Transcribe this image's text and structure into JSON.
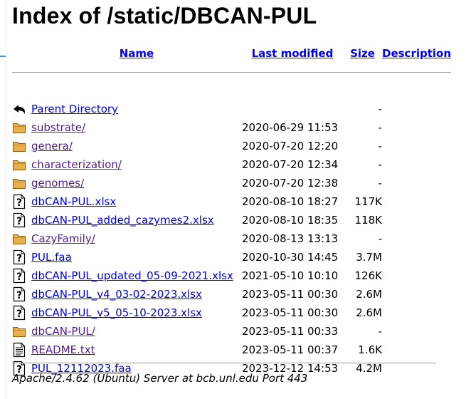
{
  "page": {
    "title": "Index of /static/DBCAN-PUL"
  },
  "columns": {
    "name": "Name",
    "last_modified": "Last modified",
    "size": "Size",
    "description": "Description"
  },
  "rows": [
    {
      "icon": "back-icon",
      "name": "Parent Directory",
      "modified": "",
      "size": "-",
      "visited": false
    },
    {
      "icon": "folder-icon",
      "name": "substrate/",
      "modified": "2020-06-29 11:53",
      "size": "-",
      "visited": true
    },
    {
      "icon": "folder-icon",
      "name": "genera/",
      "modified": "2020-07-20 12:20",
      "size": "-",
      "visited": true
    },
    {
      "icon": "folder-icon",
      "name": "characterization/",
      "modified": "2020-07-20 12:34",
      "size": "-",
      "visited": true
    },
    {
      "icon": "folder-icon",
      "name": "genomes/",
      "modified": "2020-07-20 12:38",
      "size": "-",
      "visited": true
    },
    {
      "icon": "unknown-file-icon",
      "name": "dbCAN-PUL.xlsx",
      "modified": "2020-08-10 18:27",
      "size": "117K",
      "visited": false
    },
    {
      "icon": "unknown-file-icon",
      "name": "dbCAN-PUL_added_cazymes2.xlsx",
      "modified": "2020-08-10 18:35",
      "size": "118K",
      "visited": false
    },
    {
      "icon": "folder-icon",
      "name": "CazyFamily/",
      "modified": "2020-08-13 13:13",
      "size": "-",
      "visited": true
    },
    {
      "icon": "unknown-file-icon",
      "name": "PUL.faa",
      "modified": "2020-10-30 14:45",
      "size": "3.7M",
      "visited": false
    },
    {
      "icon": "unknown-file-icon",
      "name": "dbCAN-PUL_updated_05-09-2021.xlsx",
      "modified": "2021-05-10 10:10",
      "size": "126K",
      "visited": false
    },
    {
      "icon": "unknown-file-icon",
      "name": "dbCAN-PUL_v4_03-02-2023.xlsx",
      "modified": "2023-05-11 00:30",
      "size": "2.6M",
      "visited": false
    },
    {
      "icon": "unknown-file-icon",
      "name": "dbCAN-PUL_v5_05-10-2023.xlsx",
      "modified": "2023-05-11 00:30",
      "size": "2.6M",
      "visited": false
    },
    {
      "icon": "folder-icon",
      "name": "dbCAN-PUL/",
      "modified": "2023-05-11 00:33",
      "size": "-",
      "visited": true
    },
    {
      "icon": "text-file-icon",
      "name": "README.txt",
      "modified": "2023-05-11 00:37",
      "size": "1.6K",
      "visited": true
    },
    {
      "icon": "unknown-file-icon",
      "name": "PUL_12112023.faa",
      "modified": "2023-12-12 14:53",
      "size": "4.2M",
      "visited": false
    }
  ],
  "footer": {
    "server": "Apache/2.4.62 (Ubuntu) Server at bcb.unl.edu Port 443"
  },
  "colors": {
    "link": "#0000ee",
    "visited": "#551a8b",
    "folder": "#e8b04a",
    "rule": "#9a9a9a"
  }
}
